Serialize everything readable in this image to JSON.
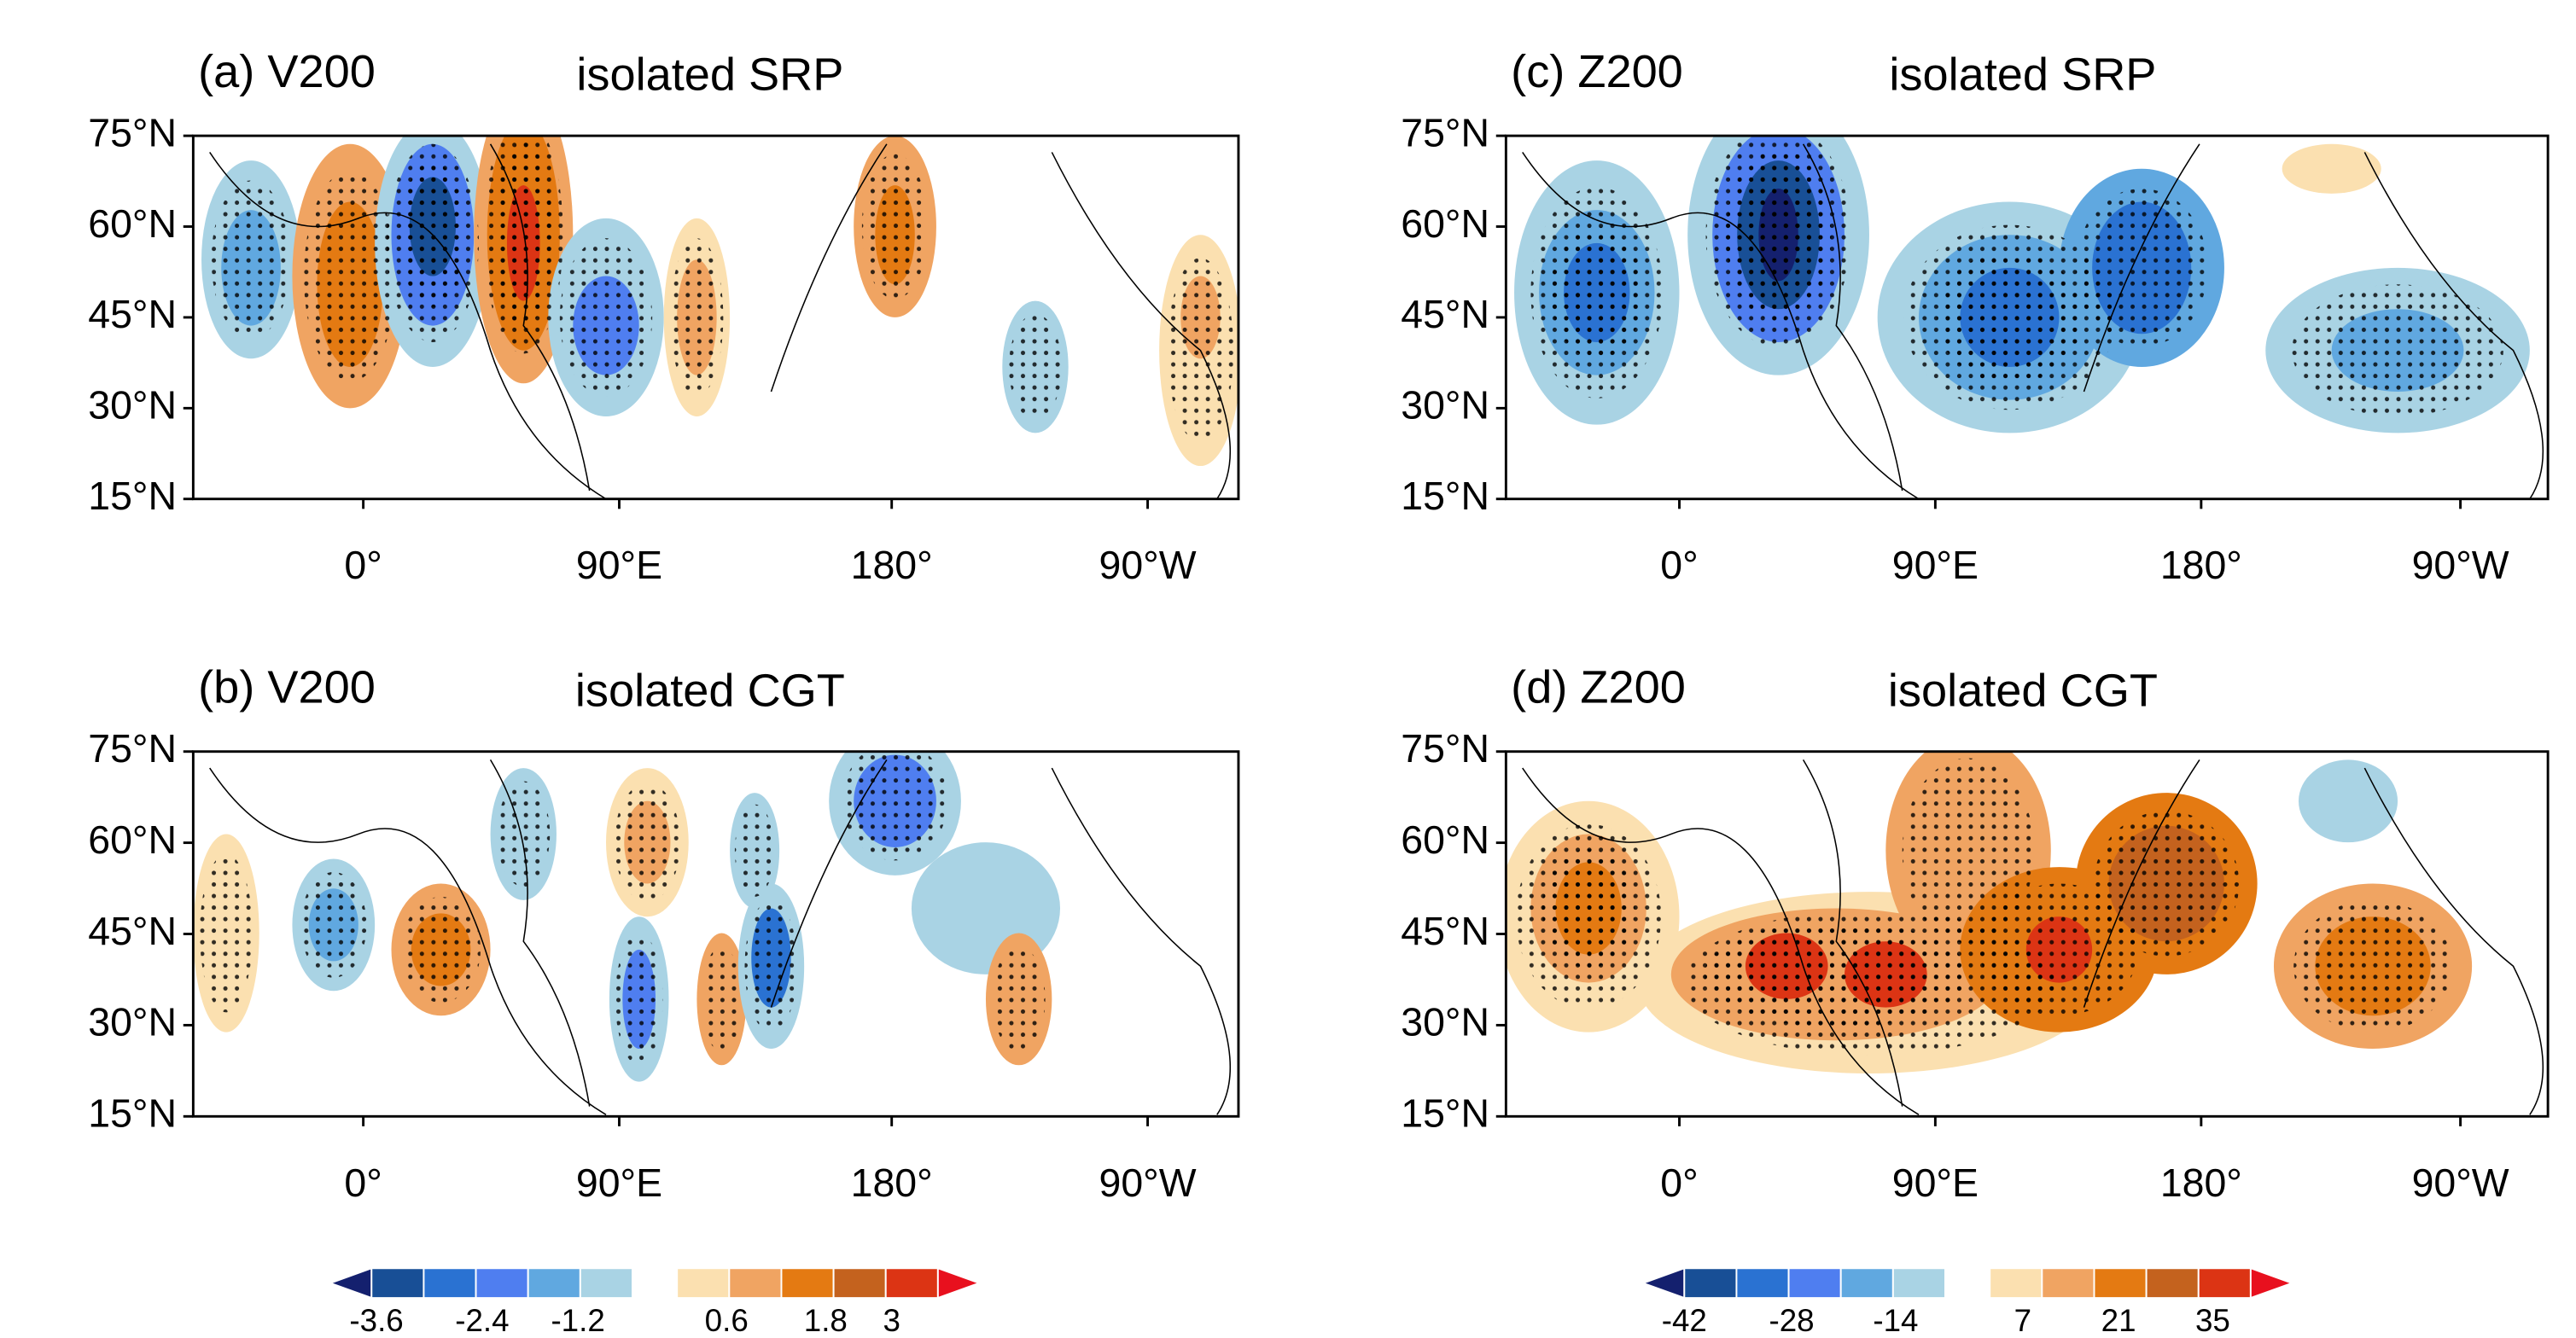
{
  "panels": [
    {
      "label": "(a) V200",
      "title": "isolated SRP",
      "yticks": [
        "75°N",
        "60°N",
        "45°N",
        "30°N",
        "15°N"
      ],
      "xticks": [
        "0°",
        "90°E",
        "180°",
        "90°W"
      ]
    },
    {
      "label": "(b) V200",
      "title": "isolated CGT",
      "yticks": [
        "75°N",
        "60°N",
        "45°N",
        "30°N",
        "15°N"
      ],
      "xticks": [
        "0°",
        "90°E",
        "180°",
        "90°W"
      ]
    },
    {
      "label": "(c) Z200",
      "title": "isolated SRP",
      "yticks": [
        "75°N",
        "60°N",
        "45°N",
        "30°N",
        "15°N"
      ],
      "xticks": [
        "0°",
        "90°E",
        "180°",
        "90°W"
      ]
    },
    {
      "label": "(d) Z200",
      "title": "isolated CGT",
      "yticks": [
        "75°N",
        "60°N",
        "45°N",
        "30°N",
        "15°N"
      ],
      "xticks": [
        "0°",
        "90°E",
        "180°",
        "90°W"
      ]
    }
  ],
  "colorbars": [
    {
      "labels": [
        "-3.6",
        "-2.4",
        "-1.2",
        "0.6",
        "1.8",
        "3"
      ]
    },
    {
      "labels": [
        "-42",
        "-28",
        "-14",
        "7",
        "21",
        "35"
      ]
    }
  ],
  "colors": [
    "#14206e",
    "#184f96",
    "#2a72d2",
    "#4f7ef0",
    "#60a8e0",
    "#a9d3e4",
    "#fbe0b0",
    "#f0a462",
    "#e47a12",
    "#c4621e",
    "#dc3414",
    "#e8101e"
  ]
}
